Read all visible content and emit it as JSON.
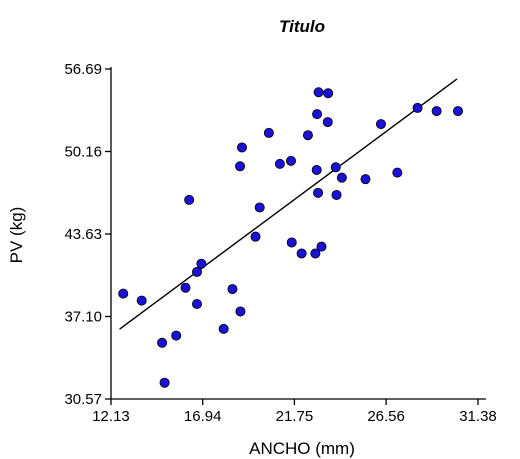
{
  "chart_data": {
    "type": "scatter",
    "title": "Titulo",
    "xlabel": "ANCHO (mm)",
    "ylabel": "PV (kg)",
    "xlim": [
      12.13,
      31.38
    ],
    "ylim": [
      30.57,
      56.69
    ],
    "xticks": [
      "12.13",
      "16.94",
      "21.75",
      "26.56",
      "31.38"
    ],
    "yticks": [
      "30.57",
      "37.10",
      "43.63",
      "50.16",
      "56.69"
    ],
    "grid": false,
    "point_color": "#1a10d6",
    "points": [
      {
        "x": 12.77,
        "y": 38.91
      },
      {
        "x": 13.74,
        "y": 38.36
      },
      {
        "x": 14.81,
        "y": 35.02
      },
      {
        "x": 14.94,
        "y": 31.86
      },
      {
        "x": 15.55,
        "y": 35.59
      },
      {
        "x": 16.04,
        "y": 39.38
      },
      {
        "x": 16.23,
        "y": 46.33
      },
      {
        "x": 16.64,
        "y": 38.09
      },
      {
        "x": 16.64,
        "y": 40.63
      },
      {
        "x": 16.87,
        "y": 41.28
      },
      {
        "x": 18.5,
        "y": 39.27
      },
      {
        "x": 18.04,
        "y": 36.12
      },
      {
        "x": 18.92,
        "y": 37.5
      },
      {
        "x": 18.9,
        "y": 48.99
      },
      {
        "x": 19.0,
        "y": 50.48
      },
      {
        "x": 19.71,
        "y": 43.42
      },
      {
        "x": 19.93,
        "y": 45.73
      },
      {
        "x": 20.41,
        "y": 51.63
      },
      {
        "x": 20.99,
        "y": 49.18
      },
      {
        "x": 21.57,
        "y": 49.42
      },
      {
        "x": 21.61,
        "y": 42.96
      },
      {
        "x": 22.13,
        "y": 42.09
      },
      {
        "x": 22.46,
        "y": 51.45
      },
      {
        "x": 22.85,
        "y": 42.09
      },
      {
        "x": 22.94,
        "y": 53.12
      },
      {
        "x": 22.92,
        "y": 48.7
      },
      {
        "x": 23.02,
        "y": 54.85
      },
      {
        "x": 22.99,
        "y": 46.89
      },
      {
        "x": 23.17,
        "y": 42.63
      },
      {
        "x": 23.5,
        "y": 52.49
      },
      {
        "x": 23.52,
        "y": 54.77
      },
      {
        "x": 23.92,
        "y": 48.91
      },
      {
        "x": 23.96,
        "y": 46.72
      },
      {
        "x": 24.24,
        "y": 48.09
      },
      {
        "x": 25.48,
        "y": 47.97
      },
      {
        "x": 26.29,
        "y": 52.33
      },
      {
        "x": 27.15,
        "y": 48.49
      },
      {
        "x": 28.21,
        "y": 53.61
      },
      {
        "x": 29.21,
        "y": 53.36
      },
      {
        "x": 30.33,
        "y": 53.36
      }
    ],
    "regression": {
      "x": [
        12.58,
        30.28
      ],
      "y": [
        36.1,
        55.9
      ]
    }
  }
}
